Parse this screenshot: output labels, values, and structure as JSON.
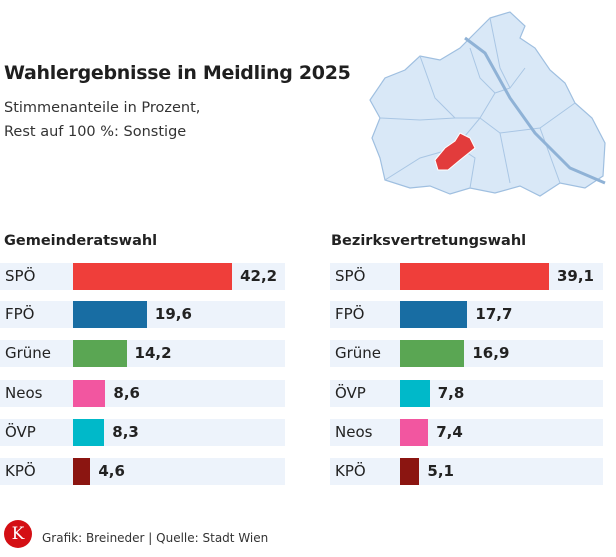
{
  "title": "Wahlergebnisse in Meidling 2025",
  "subtitle_line1": "Stimmenanteile in Prozent,",
  "subtitle_line2": "Rest auf 100 %: Sonstige",
  "footer": "Grafik: Breineder | Quelle: Stadt Wien",
  "logo_letter": "K",
  "colors": {
    "SPÖ": "#ef3e3a",
    "FPÖ": "#186da3",
    "Grüne": "#5aa653",
    "Neos": "#f256a0",
    "ÖVP": "#00b9c9",
    "KPÖ": "#8b1511",
    "highlight": "#e23c3c",
    "map_fill": "#d9e8f7",
    "map_stroke": "#9fbfe0"
  },
  "chart_data": [
    {
      "type": "bar",
      "orientation": "horizontal",
      "title": "Gemeinderatswahl",
      "categories": [
        "SPÖ",
        "FPÖ",
        "Grüne",
        "Neos",
        "ÖVP",
        "KPÖ"
      ],
      "values": [
        42.2,
        19.6,
        14.2,
        8.6,
        8.3,
        4.6
      ],
      "labels": [
        "42,2",
        "19,6",
        "14,2",
        "8,6",
        "8,3",
        "4,6"
      ]
    },
    {
      "type": "bar",
      "orientation": "horizontal",
      "title": "Bezirksvertretungswahl",
      "categories": [
        "SPÖ",
        "FPÖ",
        "Grüne",
        "ÖVP",
        "Neos",
        "KPÖ"
      ],
      "values": [
        39.1,
        17.7,
        16.9,
        7.8,
        7.4,
        5.1
      ],
      "labels": [
        "39,1",
        "17,7",
        "16,9",
        "7,8",
        "7,4",
        "5,1"
      ]
    }
  ]
}
